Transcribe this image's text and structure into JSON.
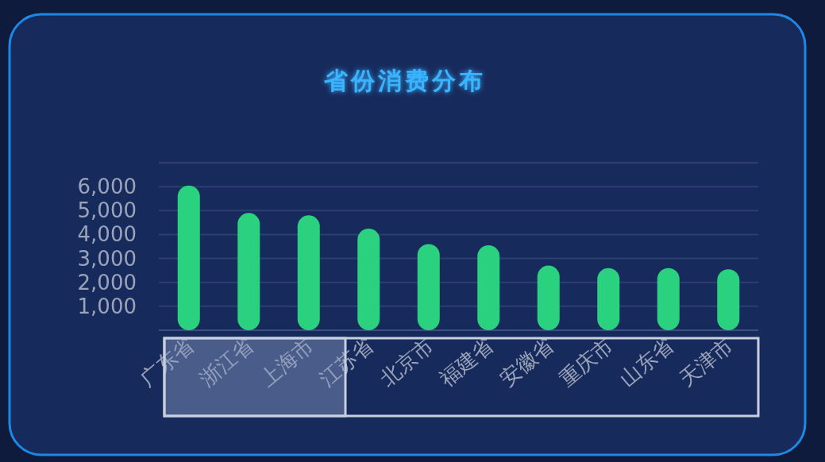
{
  "chart_data": {
    "type": "bar",
    "title": "省份消费分布",
    "categories": [
      "广东省",
      "浙江省",
      "上海市",
      "江苏省",
      "北京市",
      "福建省",
      "安徽省",
      "重庆市",
      "山东省",
      "天津市"
    ],
    "values": [
      6050,
      4900,
      4800,
      4250,
      3600,
      3550,
      2700,
      2600,
      2600,
      2550
    ],
    "color": "#2ad17f",
    "ylim": [
      0,
      7000
    ],
    "yticks": [
      {
        "value": 0,
        "label": null
      },
      {
        "value": 1000,
        "label": "1,000"
      },
      {
        "value": 2000,
        "label": "2,000"
      },
      {
        "value": 3000,
        "label": "3,000"
      },
      {
        "value": 4000,
        "label": "4,000"
      },
      {
        "value": 5000,
        "label": "5,000"
      },
      {
        "value": 6000,
        "label": "6,000"
      },
      {
        "value": 7000,
        "label": null
      }
    ],
    "grid": "y"
  }
}
